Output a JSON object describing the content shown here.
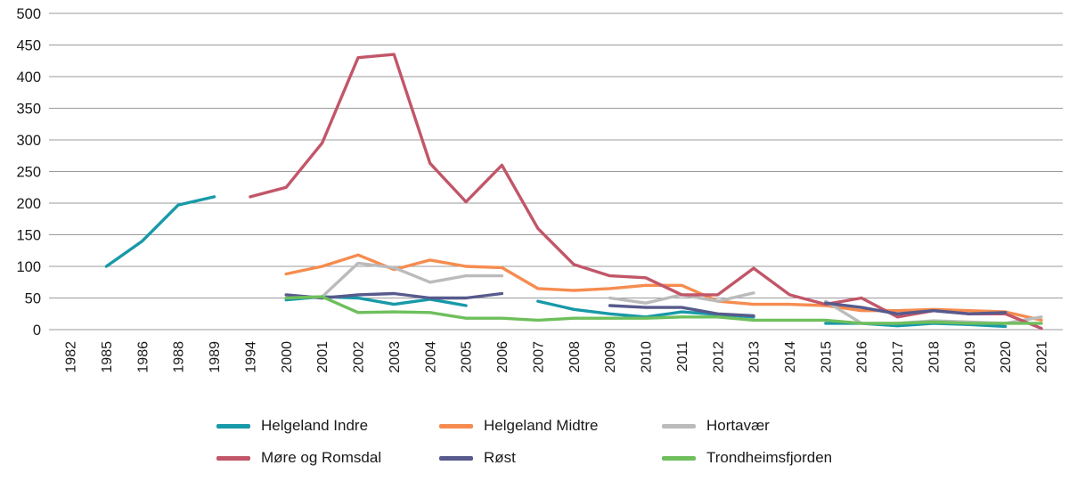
{
  "chart_data": {
    "type": "line",
    "title": "",
    "xlabel": "",
    "ylabel": "",
    "ylim": [
      0,
      500
    ],
    "ytick_interval": 50,
    "grid": true,
    "legend_position": "bottom",
    "categories": [
      "1982",
      "1985",
      "1986",
      "1988",
      "1989",
      "1994",
      "2000",
      "2001",
      "2002",
      "2003",
      "2004",
      "2005",
      "2006",
      "2007",
      "2008",
      "2009",
      "2010",
      "2011",
      "2012",
      "2013",
      "2014",
      "2015",
      "2016",
      "2017",
      "2018",
      "2019",
      "2020",
      "2021"
    ],
    "series": [
      {
        "name": "Helgeland Indre",
        "color": "#1899A8",
        "values": [
          null,
          100,
          140,
          197,
          210,
          null,
          47,
          52,
          50,
          40,
          48,
          38,
          null,
          45,
          32,
          25,
          20,
          28,
          24,
          20,
          null,
          10,
          10,
          6,
          10,
          8,
          5,
          null
        ]
      },
      {
        "name": "Helgeland Midtre",
        "color": "#F68C4F",
        "values": [
          null,
          null,
          null,
          null,
          null,
          null,
          88,
          100,
          118,
          95,
          110,
          100,
          98,
          65,
          62,
          65,
          70,
          70,
          45,
          40,
          40,
          38,
          30,
          30,
          32,
          30,
          28,
          15
        ]
      },
      {
        "name": "Hortavær",
        "color": "#BBBBBB",
        "values": [
          null,
          null,
          null,
          null,
          null,
          null,
          null,
          52,
          105,
          98,
          75,
          85,
          85,
          null,
          null,
          50,
          42,
          55,
          45,
          58,
          null,
          45,
          10,
          10,
          14,
          12,
          10,
          20
        ]
      },
      {
        "name": "Møre og Romsdal",
        "color": "#C25669",
        "values": [
          null,
          null,
          null,
          null,
          null,
          210,
          225,
          295,
          430,
          435,
          263,
          202,
          260,
          160,
          103,
          85,
          82,
          55,
          55,
          97,
          55,
          40,
          50,
          20,
          30,
          25,
          25,
          2
        ]
      },
      {
        "name": "Røst",
        "color": "#575A8C",
        "values": [
          null,
          null,
          null,
          null,
          null,
          null,
          55,
          50,
          55,
          57,
          50,
          50,
          57,
          null,
          null,
          38,
          35,
          35,
          25,
          22,
          null,
          42,
          35,
          25,
          30,
          25,
          27,
          null
        ]
      },
      {
        "name": "Trondheimsfjorden",
        "color": "#6EBF5C",
        "values": [
          null,
          null,
          null,
          null,
          null,
          null,
          50,
          52,
          27,
          28,
          27,
          18,
          18,
          15,
          18,
          18,
          18,
          20,
          20,
          15,
          15,
          15,
          10,
          10,
          12,
          10,
          10,
          10
        ]
      }
    ]
  }
}
